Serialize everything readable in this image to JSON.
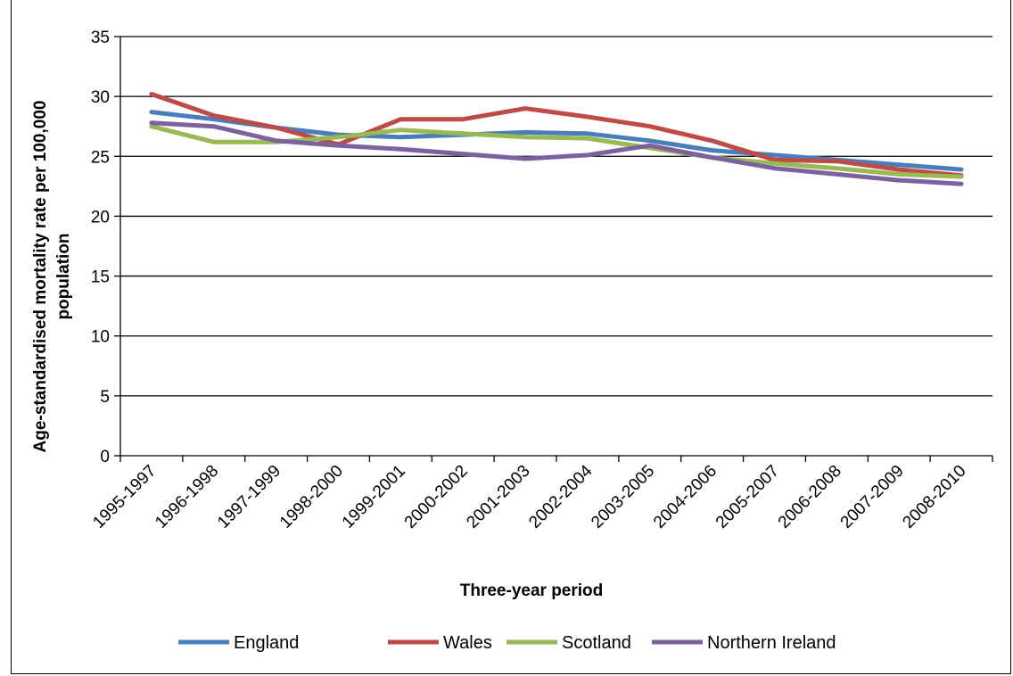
{
  "chart_data": {
    "type": "line",
    "title": "",
    "xlabel": "Three-year period",
    "ylabel": "Age-standardised mortality rate per 100,000 population",
    "ylabel_lines": [
      "Age-standardised mortality rate per 100,000",
      "population"
    ],
    "ylim": [
      0,
      35
    ],
    "yticks": [
      0,
      5,
      10,
      15,
      20,
      25,
      30,
      35
    ],
    "grid": "horizontal",
    "legend_position": "bottom",
    "categories": [
      "1995-1997",
      "1996-1998",
      "1997-1999",
      "1998-2000",
      "1999-2001",
      "2000-2002",
      "2001-2003",
      "2002-2004",
      "2003-2005",
      "2004-2006",
      "2005-2007",
      "2006-2008",
      "2007-2009",
      "2008-2010"
    ],
    "series": [
      {
        "name": "England",
        "color": "#4a7ebb",
        "values": [
          28.7,
          28.1,
          27.4,
          26.8,
          26.6,
          26.8,
          27.0,
          26.9,
          26.3,
          25.5,
          25.1,
          24.7,
          24.3,
          23.9
        ]
      },
      {
        "name": "Wales",
        "color": "#be4b48",
        "values": [
          30.2,
          28.4,
          27.4,
          26.0,
          28.1,
          28.1,
          29.0,
          28.3,
          27.5,
          26.3,
          24.7,
          24.6,
          23.9,
          23.4
        ]
      },
      {
        "name": "Scotland",
        "color": "#98b954",
        "values": [
          27.5,
          26.2,
          26.2,
          26.6,
          27.2,
          26.9,
          26.6,
          26.5,
          25.7,
          24.9,
          24.4,
          24.0,
          23.5,
          23.3
        ]
      },
      {
        "name": "Northern Ireland",
        "color": "#7d60a0",
        "values": [
          27.8,
          27.5,
          26.3,
          25.9,
          25.6,
          25.2,
          24.8,
          25.1,
          25.9,
          24.9,
          24.0,
          23.5,
          23.0,
          22.7
        ]
      }
    ]
  }
}
